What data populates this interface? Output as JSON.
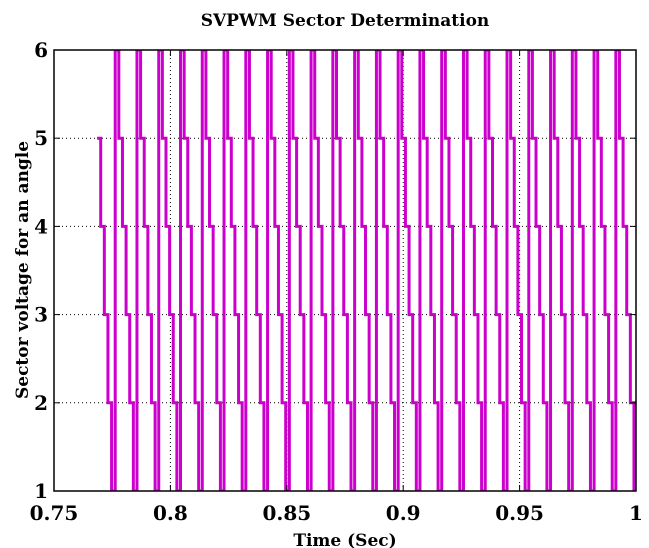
{
  "chart_data": {
    "type": "line",
    "title": "SVPWM Sector Determination",
    "xlabel": "Time (Sec)",
    "ylabel": "Sector voltage for an angle",
    "xlim": [
      0.75,
      1.0
    ],
    "ylim": [
      1,
      6
    ],
    "xticks": [
      0.75,
      0.8,
      0.85,
      0.9,
      0.95,
      1.0
    ],
    "xtick_labels": [
      "0.75",
      "0.8",
      "0.85",
      "0.9",
      "0.95",
      "1"
    ],
    "yticks": [
      1,
      2,
      3,
      4,
      5,
      6
    ],
    "ytick_labels": [
      "1",
      "2",
      "3",
      "4",
      "5",
      "6"
    ],
    "grid": true,
    "series_color": "#cc00cc",
    "series": [
      {
        "start_time": 0.7685,
        "period": 0.00935,
        "sequence": [
          5,
          4,
          3,
          2,
          1,
          6
        ]
      }
    ]
  }
}
